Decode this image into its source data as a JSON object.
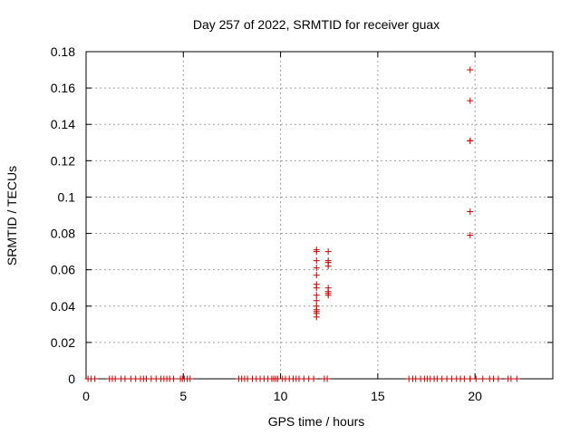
{
  "chart_data": {
    "type": "scatter",
    "title": "Day 257 of 2022, SRMTID for receiver guax",
    "xlabel": "GPS time / hours",
    "ylabel": "SRMTID / TECUs",
    "xlim": [
      0,
      24
    ],
    "ylim": [
      0,
      0.18
    ],
    "xticks": [
      0,
      5,
      10,
      15,
      20
    ],
    "xtick_labels": [
      "0",
      "5",
      "10",
      "15",
      "20"
    ],
    "yticks": [
      0,
      0.02,
      0.04,
      0.06,
      0.08,
      0.1,
      0.12,
      0.14,
      0.16,
      0.18
    ],
    "ytick_labels": [
      "0",
      "0.02",
      "0.04",
      "0.06",
      "0.08",
      "0.1",
      "0.12",
      "0.14",
      "0.16",
      "0.18"
    ],
    "grid": true,
    "marker": "+",
    "marker_color": "#cc0000",
    "series": [
      {
        "name": "SRMTID",
        "x": [
          0.1,
          0.25,
          0.45,
          1.2,
          1.35,
          1.5,
          1.8,
          2.0,
          2.3,
          2.55,
          2.8,
          2.95,
          3.1,
          3.35,
          3.6,
          3.85,
          4.0,
          4.15,
          4.3,
          4.5,
          4.85,
          4.95,
          5.05,
          5.2,
          5.35,
          7.85,
          8.0,
          8.15,
          8.3,
          8.55,
          8.75,
          8.95,
          9.15,
          9.35,
          9.55,
          9.65,
          9.75,
          9.85,
          10.1,
          10.25,
          10.45,
          10.65,
          10.8,
          10.95,
          11.2,
          11.45,
          11.7,
          12.25,
          12.4,
          11.85,
          11.85,
          11.85,
          11.85,
          11.85,
          11.85,
          11.85,
          11.85,
          11.85,
          11.85,
          11.85,
          11.85,
          11.85,
          11.85,
          12.45,
          12.45,
          12.45,
          12.45,
          12.45,
          12.45,
          12.45,
          12.45,
          16.6,
          16.8,
          16.95,
          17.2,
          17.4,
          17.55,
          17.7,
          17.9,
          18.05,
          18.3,
          18.55,
          18.8,
          19.05,
          19.25,
          19.45,
          19.75,
          19.75,
          19.75,
          19.75,
          19.75,
          19.75,
          19.75,
          19.75,
          20.05,
          20.4,
          20.75,
          20.95,
          21.2,
          21.7,
          21.85,
          22.15
        ],
        "y": [
          0,
          0,
          0,
          0,
          0,
          0,
          0,
          0,
          0,
          0,
          0,
          0,
          0,
          0,
          0,
          0,
          0,
          0,
          0,
          0,
          0,
          0,
          0,
          0,
          0,
          0,
          0,
          0,
          0,
          0,
          0,
          0,
          0,
          0,
          0,
          0,
          0,
          0,
          0,
          0,
          0,
          0,
          0,
          0,
          0,
          0,
          0,
          0,
          0,
          0.071,
          0.07,
          0.065,
          0.061,
          0.057,
          0.052,
          0.05,
          0.046,
          0.043,
          0.04,
          0.038,
          0.037,
          0.036,
          0.034,
          0.07,
          0.065,
          0.064,
          0.062,
          0.05,
          0.048,
          0.047,
          0.046,
          0,
          0,
          0,
          0,
          0,
          0,
          0,
          0,
          0,
          0,
          0,
          0,
          0,
          0,
          0,
          0.17,
          0.153,
          0.131,
          0.131,
          0.092,
          0.079,
          0,
          0,
          0,
          0,
          0,
          0,
          0,
          0,
          0,
          0
        ]
      }
    ]
  }
}
